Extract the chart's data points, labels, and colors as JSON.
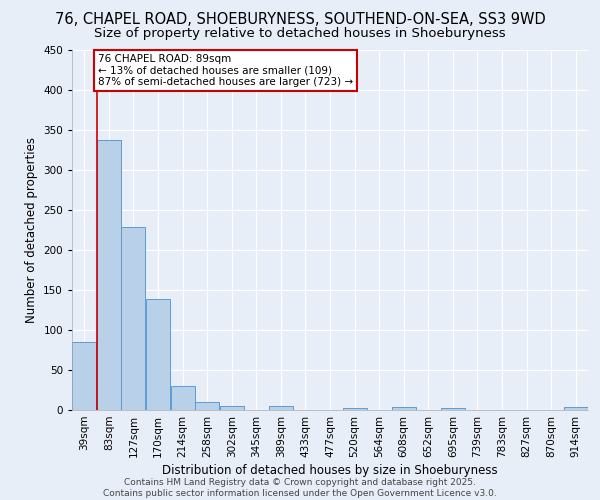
{
  "title": "76, CHAPEL ROAD, SHOEBURYNESS, SOUTHEND-ON-SEA, SS3 9WD",
  "subtitle": "Size of property relative to detached houses in Shoeburyness",
  "xlabel": "Distribution of detached houses by size in Shoeburyness",
  "ylabel": "Number of detached properties",
  "bins": [
    "39sqm",
    "83sqm",
    "127sqm",
    "170sqm",
    "214sqm",
    "258sqm",
    "302sqm",
    "345sqm",
    "389sqm",
    "433sqm",
    "477sqm",
    "520sqm",
    "564sqm",
    "608sqm",
    "652sqm",
    "695sqm",
    "739sqm",
    "783sqm",
    "827sqm",
    "870sqm",
    "914sqm"
  ],
  "values": [
    85,
    338,
    229,
    139,
    30,
    10,
    5,
    0,
    5,
    0,
    0,
    3,
    0,
    4,
    0,
    3,
    0,
    0,
    0,
    0,
    4
  ],
  "bar_color": "#b8d0e8",
  "bar_edge_color": "#5b9bd5",
  "bar_width": 0.98,
  "ylim": [
    0,
    450
  ],
  "yticks": [
    0,
    50,
    100,
    150,
    200,
    250,
    300,
    350,
    400,
    450
  ],
  "red_line_x": 1,
  "annotation_text": "76 CHAPEL ROAD: 89sqm\n← 13% of detached houses are smaller (109)\n87% of semi-detached houses are larger (723) →",
  "annotation_box_color": "#ffffff",
  "annotation_box_edge": "#cc0000",
  "footer_line1": "Contains HM Land Registry data © Crown copyright and database right 2025.",
  "footer_line2": "Contains public sector information licensed under the Open Government Licence v3.0.",
  "bg_color": "#e8eef8",
  "grid_color": "#ffffff",
  "title_fontsize": 10.5,
  "subtitle_fontsize": 9.5,
  "axis_label_fontsize": 8.5,
  "tick_fontsize": 7.5,
  "annotation_fontsize": 7.5,
  "footer_fontsize": 6.5
}
